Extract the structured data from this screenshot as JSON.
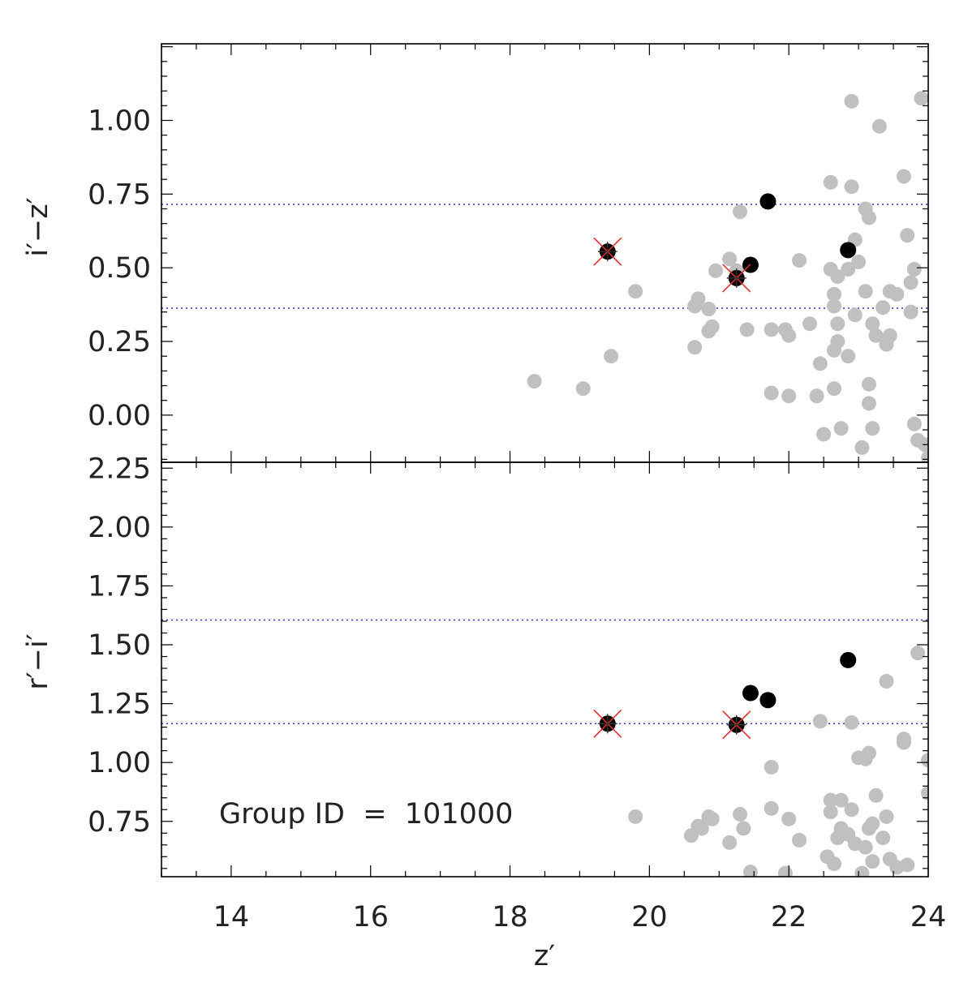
{
  "chart_data": [
    {
      "type": "scatter",
      "panel": "top",
      "ylabel": "i′−z′",
      "xlim": [
        13,
        24
      ],
      "ylim": [
        -0.16,
        1.26
      ],
      "yticks": [
        0.0,
        0.25,
        0.5,
        0.75,
        1.0
      ],
      "ytick_labels": [
        "0.00",
        "0.25",
        "0.50",
        "0.75",
        "1.00"
      ],
      "hlines": [
        0.715,
        0.363
      ],
      "series": [
        {
          "role": "field",
          "color": "#c0c0c0",
          "points": [
            [
              18.35,
              0.115
            ],
            [
              19.05,
              0.09
            ],
            [
              19.45,
              0.2
            ],
            [
              19.8,
              0.42
            ],
            [
              20.65,
              0.37
            ],
            [
              20.65,
              0.23
            ],
            [
              20.7,
              0.395
            ],
            [
              20.85,
              0.36
            ],
            [
              20.85,
              0.285
            ],
            [
              20.9,
              0.3
            ],
            [
              20.95,
              0.49
            ],
            [
              21.15,
              0.53
            ],
            [
              21.25,
              0.49
            ],
            [
              21.3,
              0.69
            ],
            [
              21.4,
              0.29
            ],
            [
              21.75,
              0.075
            ],
            [
              21.75,
              0.29
            ],
            [
              21.95,
              0.29
            ],
            [
              22.0,
              0.065
            ],
            [
              22.0,
              0.27
            ],
            [
              22.15,
              0.525
            ],
            [
              22.3,
              0.31
            ],
            [
              22.4,
              0.065
            ],
            [
              22.45,
              0.175
            ],
            [
              22.5,
              -0.065
            ],
            [
              22.6,
              0.79
            ],
            [
              22.6,
              0.495
            ],
            [
              22.65,
              0.41
            ],
            [
              22.65,
              0.37
            ],
            [
              22.65,
              0.22
            ],
            [
              22.65,
              0.09
            ],
            [
              22.7,
              0.47
            ],
            [
              22.7,
              0.31
            ],
            [
              22.7,
              0.25
            ],
            [
              22.75,
              -0.045
            ],
            [
              22.85,
              0.495
            ],
            [
              22.85,
              0.2
            ],
            [
              22.9,
              1.065
            ],
            [
              22.9,
              0.775
            ],
            [
              22.95,
              0.595
            ],
            [
              22.95,
              0.34
            ],
            [
              23.0,
              0.52
            ],
            [
              23.05,
              -0.11
            ],
            [
              23.1,
              0.42
            ],
            [
              23.1,
              0.7
            ],
            [
              23.15,
              0.67
            ],
            [
              23.15,
              0.105
            ],
            [
              23.15,
              0.04
            ],
            [
              23.2,
              -0.045
            ],
            [
              23.2,
              0.31
            ],
            [
              23.25,
              0.27
            ],
            [
              23.3,
              0.98
            ],
            [
              23.35,
              0.365
            ],
            [
              23.4,
              0.24
            ],
            [
              23.45,
              0.27
            ],
            [
              23.45,
              0.42
            ],
            [
              23.55,
              0.41
            ],
            [
              23.65,
              0.81
            ],
            [
              23.7,
              0.61
            ],
            [
              23.75,
              0.45
            ],
            [
              23.75,
              0.35
            ],
            [
              23.8,
              0.495
            ],
            [
              23.8,
              -0.03
            ],
            [
              23.85,
              -0.085
            ],
            [
              23.9,
              1.075
            ],
            [
              23.95,
              -0.1
            ],
            [
              24.0,
              -0.145
            ]
          ]
        },
        {
          "role": "member",
          "color": "#000000",
          "points": [
            [
              21.7,
              0.725
            ],
            [
              21.45,
              0.51
            ],
            [
              22.85,
              0.56
            ]
          ]
        },
        {
          "role": "member-marked",
          "color": "#000000",
          "marker_color": "#e03030",
          "points": [
            [
              19.4,
              0.555
            ],
            [
              21.25,
              0.465
            ]
          ]
        }
      ]
    },
    {
      "type": "scatter",
      "panel": "bottom",
      "xlabel": "z′",
      "ylabel": "r′−i′",
      "xlim": [
        13,
        24
      ],
      "ylim": [
        0.515,
        2.275
      ],
      "xticks": [
        14,
        16,
        18,
        20,
        22,
        24
      ],
      "xtick_labels": [
        "14",
        "16",
        "18",
        "20",
        "22",
        "24"
      ],
      "yticks": [
        0.75,
        1.0,
        1.25,
        1.5,
        1.75,
        2.0,
        2.25
      ],
      "ytick_labels": [
        "0.75",
        "1.00",
        "1.25",
        "1.50",
        "1.75",
        "2.00",
        "2.25"
      ],
      "hlines": [
        1.605,
        1.165
      ],
      "annotation": "Group ID  =  101000",
      "series": [
        {
          "role": "field",
          "color": "#c0c0c0",
          "points": [
            [
              19.8,
              0.77
            ],
            [
              20.6,
              0.69
            ],
            [
              20.7,
              0.73
            ],
            [
              20.75,
              0.72
            ],
            [
              20.85,
              0.77
            ],
            [
              20.9,
              0.76
            ],
            [
              21.15,
              0.66
            ],
            [
              21.3,
              0.78
            ],
            [
              21.35,
              0.72
            ],
            [
              21.45,
              0.535
            ],
            [
              21.75,
              0.98
            ],
            [
              21.75,
              0.805
            ],
            [
              21.95,
              0.53
            ],
            [
              22.0,
              0.76
            ],
            [
              22.15,
              0.67
            ],
            [
              22.45,
              1.175
            ],
            [
              22.55,
              0.6
            ],
            [
              22.6,
              0.84
            ],
            [
              22.6,
              0.79
            ],
            [
              22.65,
              0.57
            ],
            [
              22.7,
              0.68
            ],
            [
              22.75,
              0.84
            ],
            [
              22.75,
              0.72
            ],
            [
              22.85,
              0.695
            ],
            [
              22.9,
              1.17
            ],
            [
              22.9,
              0.8
            ],
            [
              22.95,
              0.655
            ],
            [
              23.0,
              1.02
            ],
            [
              23.05,
              0.53
            ],
            [
              23.1,
              1.015
            ],
            [
              23.1,
              0.64
            ],
            [
              23.15,
              1.04
            ],
            [
              23.15,
              0.72
            ],
            [
              23.2,
              0.58
            ],
            [
              23.2,
              0.74
            ],
            [
              23.25,
              0.86
            ],
            [
              23.35,
              0.68
            ],
            [
              23.4,
              0.77
            ],
            [
              23.4,
              1.345
            ],
            [
              23.45,
              0.59
            ],
            [
              23.55,
              0.555
            ],
            [
              23.65,
              1.1
            ],
            [
              23.65,
              1.085
            ],
            [
              23.7,
              0.565
            ],
            [
              23.85,
              1.465
            ],
            [
              24.0,
              1.01
            ],
            [
              24.0,
              0.87
            ]
          ]
        },
        {
          "role": "member",
          "color": "#000000",
          "points": [
            [
              21.45,
              1.295
            ],
            [
              21.7,
              1.265
            ],
            [
              22.85,
              1.435
            ]
          ]
        },
        {
          "role": "member-marked",
          "color": "#000000",
          "marker_color": "#e03030",
          "points": [
            [
              19.4,
              1.165
            ],
            [
              21.25,
              1.16
            ]
          ]
        }
      ]
    }
  ]
}
